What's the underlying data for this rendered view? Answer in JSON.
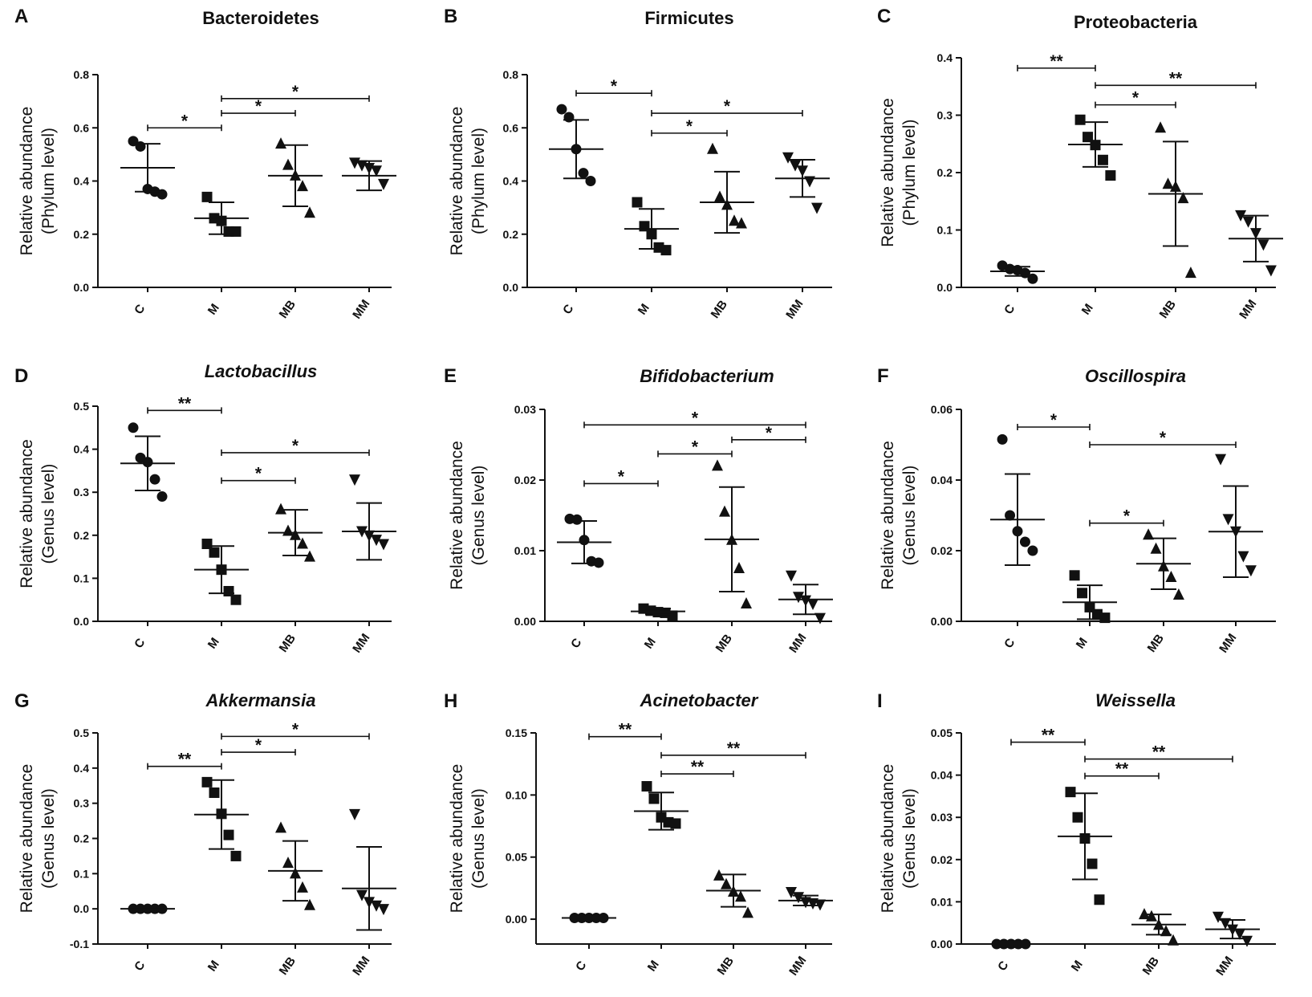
{
  "figure": {
    "colors": {
      "ink": "#111111",
      "background": "#ffffff"
    }
  },
  "chart_data": [
    {
      "type": "scatter",
      "panel": "A",
      "title": "Bacteroidetes",
      "title_italic": false,
      "ylabel": "Relative abundance",
      "ylabel2": "(Phylum level)",
      "categories": [
        "C",
        "M",
        "MB",
        "MM"
      ],
      "markers": [
        "circle",
        "square",
        "triangle-up",
        "triangle-down"
      ],
      "ylim": [
        0,
        0.8
      ],
      "yticks": [
        0.0,
        0.2,
        0.4,
        0.6,
        0.8
      ],
      "tick_decimals": 1,
      "points": [
        [
          0.55,
          0.53,
          0.37,
          0.36,
          0.35
        ],
        [
          0.34,
          0.26,
          0.25,
          0.21,
          0.21
        ],
        [
          0.54,
          0.46,
          0.42,
          0.38,
          0.28
        ],
        [
          0.47,
          0.46,
          0.45,
          0.44,
          0.39
        ]
      ],
      "mean": [
        0.45,
        0.26,
        0.42,
        0.42
      ],
      "sd": [
        0.09,
        0.06,
        0.115,
        0.055
      ],
      "significance": [
        {
          "from": 0,
          "to": 1,
          "label": "*",
          "y": 0.6
        },
        {
          "from": 1,
          "to": 2,
          "label": "*",
          "y": 0.655
        },
        {
          "from": 1,
          "to": 3,
          "label": "*",
          "y": 0.71
        }
      ]
    },
    {
      "type": "scatter",
      "panel": "B",
      "title": "Firmicutes",
      "title_italic": false,
      "ylabel": "Relative abundance",
      "ylabel2": "(Phylum level)",
      "categories": [
        "C",
        "M",
        "MB",
        "MM"
      ],
      "markers": [
        "circle",
        "square",
        "triangle-up",
        "triangle-down"
      ],
      "ylim": [
        0,
        0.8
      ],
      "yticks": [
        0.0,
        0.2,
        0.4,
        0.6,
        0.8
      ],
      "tick_decimals": 1,
      "points": [
        [
          0.67,
          0.64,
          0.52,
          0.43,
          0.4
        ],
        [
          0.32,
          0.23,
          0.2,
          0.15,
          0.14
        ],
        [
          0.52,
          0.34,
          0.31,
          0.25,
          0.24
        ],
        [
          0.49,
          0.46,
          0.44,
          0.4,
          0.3
        ]
      ],
      "mean": [
        0.52,
        0.22,
        0.32,
        0.41
      ],
      "sd": [
        0.11,
        0.075,
        0.115,
        0.07
      ],
      "significance": [
        {
          "from": 0,
          "to": 1,
          "label": "*",
          "y": 0.73
        },
        {
          "from": 1,
          "to": 2,
          "label": "*",
          "y": 0.58
        },
        {
          "from": 1,
          "to": 3,
          "label": "*",
          "y": 0.655
        }
      ]
    },
    {
      "type": "scatter",
      "panel": "C",
      "title": "Proteobacteria",
      "title_italic": false,
      "ylabel": "Relative abundance",
      "ylabel2": "(Phylum level)",
      "categories": [
        "C",
        "M",
        "MB",
        "MM"
      ],
      "markers": [
        "circle",
        "square",
        "triangle-up",
        "triangle-down"
      ],
      "ylim": [
        0,
        0.4
      ],
      "yticks": [
        0.0,
        0.1,
        0.2,
        0.3,
        0.4
      ],
      "tick_decimals": 1,
      "points": [
        [
          0.038,
          0.032,
          0.03,
          0.025,
          0.015
        ],
        [
          0.292,
          0.262,
          0.248,
          0.222,
          0.195
        ],
        [
          0.278,
          0.18,
          0.175,
          0.155,
          0.025
        ],
        [
          0.126,
          0.115,
          0.095,
          0.075,
          0.03
        ]
      ],
      "mean": [
        0.028,
        0.249,
        0.163,
        0.085
      ],
      "sd": [
        0.008,
        0.039,
        0.091,
        0.04
      ],
      "significance": [
        {
          "from": 0,
          "to": 1,
          "label": "**",
          "y": 0.382
        },
        {
          "from": 1,
          "to": 2,
          "label": "*",
          "y": 0.318
        },
        {
          "from": 1,
          "to": 3,
          "label": "**",
          "y": 0.352
        }
      ]
    },
    {
      "type": "scatter",
      "panel": "D",
      "title": "Lactobacillus",
      "title_italic": true,
      "ylabel": "Relative abundance",
      "ylabel2": "(Genus level)",
      "categories": [
        "C",
        "M",
        "MB",
        "MM"
      ],
      "markers": [
        "circle",
        "square",
        "triangle-up",
        "triangle-down"
      ],
      "ylim": [
        0,
        0.5
      ],
      "yticks": [
        0.0,
        0.1,
        0.2,
        0.3,
        0.4,
        0.5
      ],
      "tick_decimals": 1,
      "points": [
        [
          0.45,
          0.38,
          0.37,
          0.33,
          0.29
        ],
        [
          0.18,
          0.16,
          0.12,
          0.07,
          0.05
        ],
        [
          0.26,
          0.21,
          0.2,
          0.18,
          0.15
        ],
        [
          0.33,
          0.21,
          0.2,
          0.19,
          0.18
        ]
      ],
      "mean": [
        0.367,
        0.12,
        0.206,
        0.209
      ],
      "sd": [
        0.063,
        0.055,
        0.053,
        0.066
      ],
      "significance": [
        {
          "from": 0,
          "to": 1,
          "label": "**",
          "y": 0.49
        },
        {
          "from": 1,
          "to": 2,
          "label": "*",
          "y": 0.327
        },
        {
          "from": 1,
          "to": 3,
          "label": "*",
          "y": 0.392
        }
      ]
    },
    {
      "type": "scatter",
      "panel": "E",
      "title": "Bifidobacterium",
      "title_italic": true,
      "ylabel": "Relative abundance",
      "ylabel2": "(Genus level)",
      "categories": [
        "C",
        "M",
        "MB",
        "MM"
      ],
      "markers": [
        "circle",
        "square",
        "triangle-up",
        "triangle-down"
      ],
      "ylim": [
        0,
        0.03
      ],
      "yticks": [
        0.0,
        0.01,
        0.02,
        0.03
      ],
      "tick_decimals": 2,
      "points": [
        [
          0.0145,
          0.0144,
          0.0115,
          0.0085,
          0.0083
        ],
        [
          0.0018,
          0.0015,
          0.0013,
          0.0012,
          0.0008
        ],
        [
          0.022,
          0.0155,
          0.0115,
          0.0075,
          0.0025
        ],
        [
          0.0065,
          0.0035,
          0.003,
          0.0025,
          0.0005
        ]
      ],
      "mean": [
        0.0112,
        0.0014,
        0.0116,
        0.0031
      ],
      "sd": [
        0.003,
        0.0004,
        0.0074,
        0.0021
      ],
      "significance": [
        {
          "from": 0,
          "to": 1,
          "label": "*",
          "y": 0.0195
        },
        {
          "from": 1,
          "to": 2,
          "label": "*",
          "y": 0.0237
        },
        {
          "from": 2,
          "to": 3,
          "label": "*",
          "y": 0.0257
        },
        {
          "from": 0,
          "to": 3,
          "label": "*",
          "y": 0.0278
        }
      ]
    },
    {
      "type": "scatter",
      "panel": "F",
      "title": "Oscillospira",
      "title_italic": true,
      "ylabel": "Relative abundance",
      "ylabel2": "(Genus level)",
      "categories": [
        "C",
        "M",
        "MB",
        "MM"
      ],
      "markers": [
        "circle",
        "square",
        "triangle-up",
        "triangle-down"
      ],
      "ylim": [
        0,
        0.06
      ],
      "yticks": [
        0.0,
        0.02,
        0.04,
        0.06
      ],
      "tick_decimals": 2,
      "points": [
        [
          0.0515,
          0.03,
          0.0255,
          0.0225,
          0.02
        ],
        [
          0.013,
          0.008,
          0.004,
          0.002,
          0.001
        ],
        [
          0.0245,
          0.0205,
          0.0155,
          0.0125,
          0.0075
        ],
        [
          0.046,
          0.029,
          0.0255,
          0.0185,
          0.0145
        ]
      ],
      "mean": [
        0.0288,
        0.0054,
        0.0163,
        0.0254
      ],
      "sd": [
        0.0129,
        0.0048,
        0.0072,
        0.0129
      ],
      "significance": [
        {
          "from": 0,
          "to": 1,
          "label": "*",
          "y": 0.055
        },
        {
          "from": 1,
          "to": 2,
          "label": "*",
          "y": 0.0278
        },
        {
          "from": 1,
          "to": 3,
          "label": "*",
          "y": 0.05
        }
      ]
    },
    {
      "type": "scatter",
      "panel": "G",
      "title": "Akkermansia",
      "title_italic": true,
      "ylabel": "Relative abundance",
      "ylabel2": "(Genus level)",
      "categories": [
        "C",
        "M",
        "MB",
        "MM"
      ],
      "markers": [
        "circle",
        "square",
        "triangle-up",
        "triangle-down"
      ],
      "ylim": [
        -0.1,
        0.5
      ],
      "yticks": [
        -0.1,
        0.0,
        0.1,
        0.2,
        0.3,
        0.4,
        0.5
      ],
      "tick_decimals": 1,
      "points": [
        [
          0.0,
          0.0,
          0.0,
          0.0,
          0.0
        ],
        [
          0.36,
          0.33,
          0.27,
          0.21,
          0.15
        ],
        [
          0.23,
          0.13,
          0.1,
          0.06,
          0.01
        ],
        [
          0.27,
          0.04,
          0.02,
          0.01,
          0.0
        ]
      ],
      "mean": [
        0.0,
        0.268,
        0.108,
        0.058
      ],
      "sd": [
        0.0,
        0.098,
        0.085,
        0.118
      ],
      "significance": [
        {
          "from": 0,
          "to": 1,
          "label": "**",
          "y": 0.405
        },
        {
          "from": 1,
          "to": 2,
          "label": "*",
          "y": 0.445
        },
        {
          "from": 1,
          "to": 3,
          "label": "*",
          "y": 0.49
        }
      ]
    },
    {
      "type": "scatter",
      "panel": "H",
      "title": "Acinetobacter",
      "title_italic": true,
      "ylabel": "Relative abundance",
      "ylabel2": "(Genus level)",
      "categories": [
        "C",
        "M",
        "MB",
        "MM"
      ],
      "markers": [
        "circle",
        "square",
        "triangle-up",
        "triangle-down"
      ],
      "ylim": [
        -0.02,
        0.15
      ],
      "yticks": [
        0.0,
        0.05,
        0.1,
        0.15
      ],
      "tick_decimals": 2,
      "points": [
        [
          0.001,
          0.001,
          0.001,
          0.001,
          0.001
        ],
        [
          0.107,
          0.097,
          0.082,
          0.078,
          0.077
        ],
        [
          0.035,
          0.028,
          0.022,
          0.018,
          0.005
        ],
        [
          0.022,
          0.018,
          0.014,
          0.013,
          0.012
        ]
      ],
      "mean": [
        0.001,
        0.087,
        0.023,
        0.015
      ],
      "sd": [
        0.0,
        0.015,
        0.013,
        0.004
      ],
      "significance": [
        {
          "from": 0,
          "to": 1,
          "label": "**",
          "y": 0.147
        },
        {
          "from": 1,
          "to": 2,
          "label": "**",
          "y": 0.117
        },
        {
          "from": 1,
          "to": 3,
          "label": "**",
          "y": 0.132
        }
      ]
    },
    {
      "type": "scatter",
      "panel": "I",
      "title": "Weissella",
      "title_italic": true,
      "ylabel": "Relative abundance",
      "ylabel2": "(Genus level)",
      "categories": [
        "C",
        "M",
        "MB",
        "MM"
      ],
      "markers": [
        "circle",
        "square",
        "triangle-up",
        "triangle-down"
      ],
      "ylim": [
        0,
        0.05
      ],
      "yticks": [
        0.0,
        0.01,
        0.02,
        0.03,
        0.04,
        0.05
      ],
      "tick_decimals": 2,
      "points": [
        [
          0.0,
          0.0,
          0.0,
          0.0,
          0.0
        ],
        [
          0.036,
          0.03,
          0.025,
          0.019,
          0.0105
        ],
        [
          0.007,
          0.0065,
          0.0045,
          0.003,
          0.0008
        ],
        [
          0.0065,
          0.005,
          0.0035,
          0.0025,
          0.0008
        ]
      ],
      "mean": [
        0.0,
        0.0255,
        0.0046,
        0.0035
      ],
      "sd": [
        0.0,
        0.0102,
        0.0024,
        0.0022
      ],
      "significance": [
        {
          "from": 0,
          "to": 1,
          "label": "**",
          "y": 0.0478
        },
        {
          "from": 1,
          "to": 2,
          "label": "**",
          "y": 0.0398
        },
        {
          "from": 1,
          "to": 3,
          "label": "**",
          "y": 0.0438
        }
      ]
    }
  ]
}
